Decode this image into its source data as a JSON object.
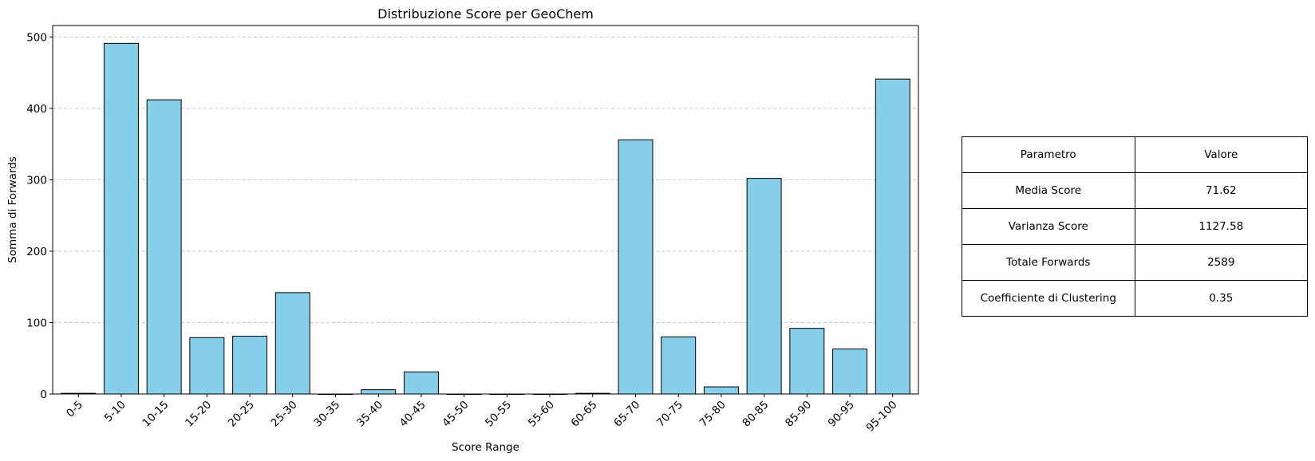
{
  "chart_data": {
    "type": "bar",
    "title": "Distribuzione Score per GeoChem",
    "xlabel": "Score Range",
    "ylabel": "Somma di Forwards",
    "categories": [
      "0-5",
      "5-10",
      "10-15",
      "15-20",
      "20-25",
      "25-30",
      "30-35",
      "35-40",
      "40-45",
      "45-50",
      "50-55",
      "55-60",
      "60-65",
      "65-70",
      "70-75",
      "75-80",
      "80-85",
      "85-90",
      "90-95",
      "95-100"
    ],
    "values": [
      1,
      491,
      412,
      79,
      81,
      142,
      0,
      6,
      31,
      0,
      0,
      0,
      1,
      356,
      80,
      10,
      302,
      92,
      63,
      441
    ],
    "ylim": [
      0,
      516
    ],
    "yticks": [
      0,
      100,
      200,
      300,
      400,
      500
    ],
    "grid": "y, dashed",
    "bar_color": "#87ceeb",
    "edge_color": "#000000",
    "grid_color": "#c8c8c8"
  },
  "table": {
    "header": [
      "Parametro",
      "Valore"
    ],
    "rows": [
      [
        "Media Score",
        "71.62"
      ],
      [
        "Varianza Score",
        "1127.58"
      ],
      [
        "Totale Forwards",
        "2589"
      ],
      [
        "Coefficiente di Clustering",
        "0.35"
      ]
    ]
  }
}
